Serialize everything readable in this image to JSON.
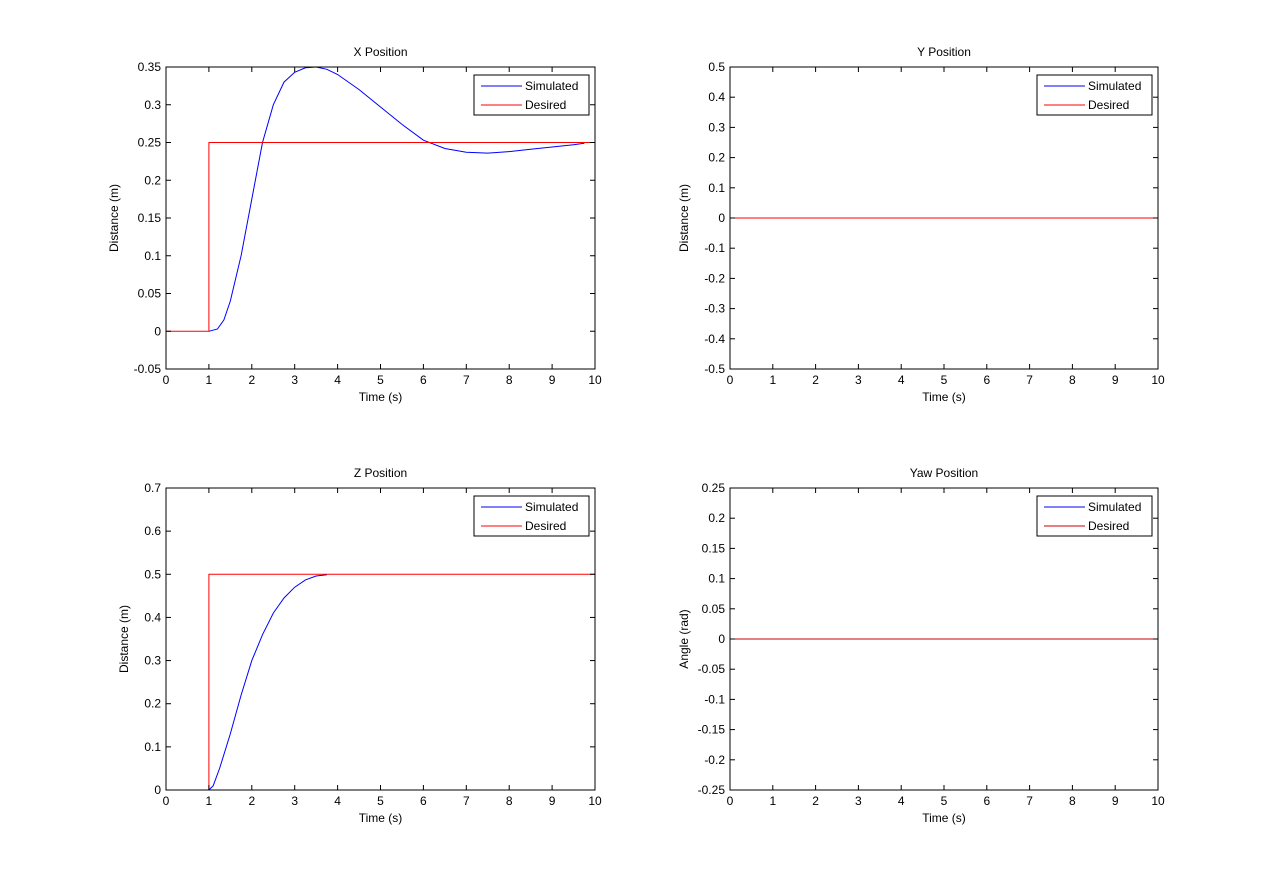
{
  "colors": {
    "simulated": "#0000ff",
    "desired": "#ff0000",
    "axes": "#000000",
    "background": "#ffffff"
  },
  "chart_data": [
    {
      "type": "line",
      "title": "X Position",
      "xlabel": "Time (s)",
      "ylabel": "Distance (m)",
      "xlim": [
        0,
        10
      ],
      "ylim": [
        -0.05,
        0.35
      ],
      "xticks": [
        "0",
        "1",
        "2",
        "3",
        "4",
        "5",
        "6",
        "7",
        "8",
        "9",
        "10"
      ],
      "yticks": [
        "-0.05",
        "0",
        "0.05",
        "0.1",
        "0.15",
        "0.2",
        "0.25",
        "0.3",
        "0.35"
      ],
      "grid": false,
      "legend": "top-right",
      "series": [
        {
          "name": "Simulated",
          "color": "#0000ff",
          "x": [
            1,
            1.2,
            1.35,
            1.5,
            1.75,
            2,
            2.25,
            2.5,
            2.75,
            3,
            3.25,
            3.5,
            3.75,
            4,
            4.5,
            5,
            5.5,
            6,
            6.5,
            7,
            7.5,
            8,
            8.5,
            9,
            9.5,
            9.75
          ],
          "y": [
            0,
            0.003,
            0.015,
            0.04,
            0.1,
            0.175,
            0.25,
            0.3,
            0.33,
            0.343,
            0.349,
            0.35,
            0.347,
            0.34,
            0.32,
            0.297,
            0.274,
            0.253,
            0.242,
            0.237,
            0.236,
            0.238,
            0.241,
            0.244,
            0.247,
            0.249
          ]
        },
        {
          "name": "Desired",
          "color": "#ff0000",
          "x": [
            0,
            1,
            1,
            10
          ],
          "y": [
            0,
            0,
            0.25,
            0.25
          ]
        }
      ]
    },
    {
      "type": "line",
      "title": "Y Position",
      "xlabel": "Time (s)",
      "ylabel": "Distance (m)",
      "xlim": [
        0,
        10
      ],
      "ylim": [
        -0.5,
        0.5
      ],
      "xticks": [
        "0",
        "1",
        "2",
        "3",
        "4",
        "5",
        "6",
        "7",
        "8",
        "9",
        "10"
      ],
      "yticks": [
        "-0.5",
        "-0.4",
        "-0.3",
        "-0.2",
        "-0.1",
        "0",
        "0.1",
        "0.2",
        "0.3",
        "0.4",
        "0.5"
      ],
      "grid": false,
      "legend": "top-right",
      "series": [
        {
          "name": "Simulated",
          "color": "#0000ff",
          "x": [
            0,
            10
          ],
          "y": [
            0,
            0
          ]
        },
        {
          "name": "Desired",
          "color": "#ff0000",
          "x": [
            0,
            10
          ],
          "y": [
            0,
            0
          ]
        }
      ]
    },
    {
      "type": "line",
      "title": "Z Position",
      "xlabel": "Time (s)",
      "ylabel": "Distance (m)",
      "xlim": [
        0,
        10
      ],
      "ylim": [
        0,
        0.7
      ],
      "xticks": [
        "0",
        "1",
        "2",
        "3",
        "4",
        "5",
        "6",
        "7",
        "8",
        "9",
        "10"
      ],
      "yticks": [
        "0",
        "0.1",
        "0.2",
        "0.3",
        "0.4",
        "0.5",
        "0.6",
        "0.7"
      ],
      "grid": false,
      "legend": "top-right",
      "series": [
        {
          "name": "Simulated",
          "color": "#0000ff",
          "x": [
            1,
            1.1,
            1.25,
            1.5,
            1.75,
            2,
            2.25,
            2.5,
            2.75,
            3,
            3.25,
            3.5,
            3.75
          ],
          "y": [
            0,
            0.01,
            0.05,
            0.13,
            0.22,
            0.3,
            0.36,
            0.41,
            0.445,
            0.47,
            0.487,
            0.496,
            0.499
          ]
        },
        {
          "name": "Desired",
          "color": "#ff0000",
          "x": [
            1,
            1,
            10
          ],
          "y": [
            0,
            0.5,
            0.5
          ]
        }
      ]
    },
    {
      "type": "line",
      "title": "Yaw Position",
      "xlabel": "Time (s)",
      "ylabel": "Angle (rad)",
      "xlim": [
        0,
        10
      ],
      "ylim": [
        -0.25,
        0.25
      ],
      "xticks": [
        "0",
        "1",
        "2",
        "3",
        "4",
        "5",
        "6",
        "7",
        "8",
        "9",
        "10"
      ],
      "yticks": [
        "-0.25",
        "-0.2",
        "-0.15",
        "-0.1",
        "-0.05",
        "0",
        "0.05",
        "0.1",
        "0.15",
        "0.2",
        "0.25"
      ],
      "grid": false,
      "legend": "top-right",
      "series": [
        {
          "name": "Simulated",
          "color": "#0000ff",
          "x": [
            0,
            10
          ],
          "y": [
            0,
            0
          ]
        },
        {
          "name": "Desired",
          "color": "#cc0000",
          "x": [
            0,
            10
          ],
          "y": [
            0,
            0
          ]
        }
      ]
    }
  ]
}
